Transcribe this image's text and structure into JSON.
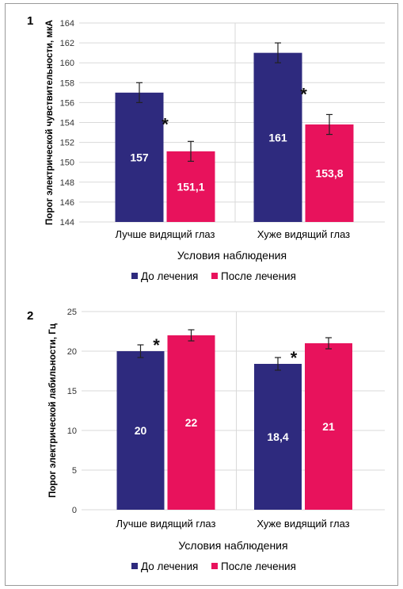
{
  "colors": {
    "before": "#2e2a7e",
    "after": "#e8125c"
  },
  "chart_data": [
    {
      "type": "bar",
      "panel_label": "1",
      "categories": [
        "Лучше видящий глаз",
        "Хуже видящий глаз"
      ],
      "series": [
        {
          "name": "До лечения",
          "values": [
            157,
            161
          ],
          "errors": [
            1,
            1
          ],
          "data_labels": [
            "157",
            "161"
          ]
        },
        {
          "name": "После лечения",
          "values": [
            151.1,
            153.8
          ],
          "errors": [
            1,
            1
          ],
          "data_labels": [
            "151,1",
            "153,8"
          ]
        }
      ],
      "significance": [
        "*",
        "*"
      ],
      "xlabel": "Условия наблюдения",
      "ylabel": "Порог электрической чувствительности, мкА",
      "ylim": [
        144,
        164
      ],
      "yticks": [
        144,
        146,
        148,
        150,
        152,
        154,
        156,
        158,
        160,
        162,
        164
      ],
      "grid": true,
      "legend": "bottom"
    },
    {
      "type": "bar",
      "panel_label": "2",
      "categories": [
        "Лучше видящий глаз",
        "Хуже видящий глаз"
      ],
      "series": [
        {
          "name": "До лечения",
          "values": [
            20,
            18.4
          ],
          "errors": [
            0.8,
            0.8
          ],
          "data_labels": [
            "20",
            "18,4"
          ]
        },
        {
          "name": "После лечения",
          "values": [
            22,
            21
          ],
          "errors": [
            0.7,
            0.7
          ],
          "data_labels": [
            "22",
            "21"
          ]
        }
      ],
      "significance": [
        "*",
        "*"
      ],
      "xlabel": "Условия наблюдения",
      "ylabel": "Порог электрической лабильности, Гц",
      "ylim": [
        0,
        25
      ],
      "yticks": [
        0,
        5,
        10,
        15,
        20,
        25
      ],
      "grid": true,
      "legend": "bottom"
    }
  ]
}
